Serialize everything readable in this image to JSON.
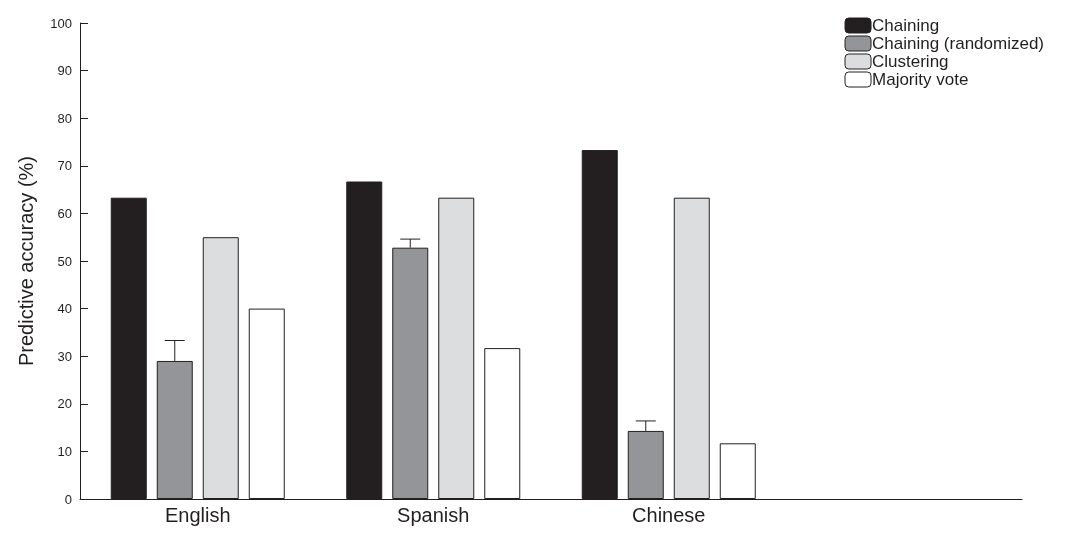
{
  "chart_data": {
    "type": "bar",
    "ylabel": "Predictive accuracy (%)",
    "categories": [
      "English",
      "Spanish",
      "Chinese",
      null
    ],
    "series": [
      {
        "name": "Chaining",
        "color": "#231f20",
        "values": [
          63.3,
          66.7,
          73.3,
          null
        ]
      },
      {
        "name": "Chaining (randomized)",
        "color": "#939598",
        "values": [
          29,
          52.8,
          14.3,
          null
        ],
        "errors": [
          [
            29,
            33.3
          ],
          [
            52.8,
            54.6
          ],
          [
            14.3,
            16.4
          ],
          null
        ]
      },
      {
        "name": "Clustering",
        "color": "#dcdddf",
        "values": [
          55,
          63.3,
          63.3,
          null
        ]
      },
      {
        "name": "Majority vote",
        "color": "#ffffff",
        "values": [
          40,
          31.7,
          11.7,
          null
        ]
      }
    ],
    "ylim": [
      0,
      100
    ],
    "yticks": [
      0,
      10,
      20,
      30,
      40,
      50,
      60,
      70,
      80,
      90,
      100
    ],
    "grid": false,
    "legend": "top right"
  }
}
